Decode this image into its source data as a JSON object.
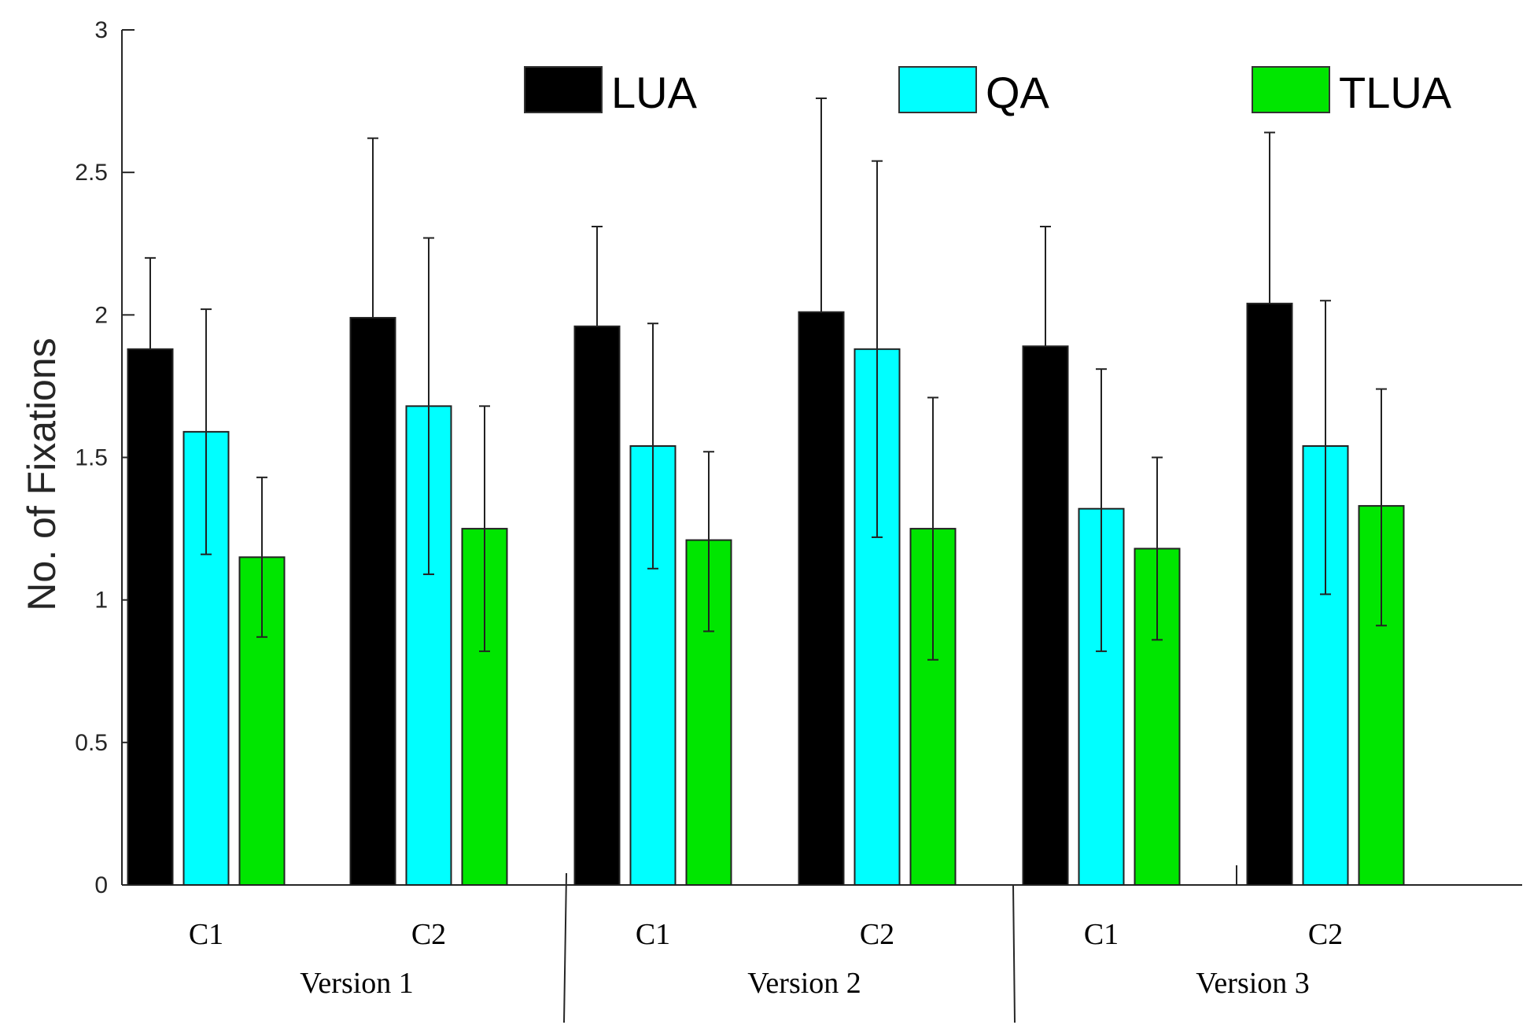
{
  "chart_data": {
    "type": "bar",
    "ylabel": "No. of Fixations",
    "xlabel": "",
    "ylim": [
      0,
      3
    ],
    "yticks": [
      "0",
      "0.5",
      "1",
      "1.5",
      "2",
      "2.5",
      "3"
    ],
    "legend_position": "top",
    "groups": [
      "Version 1",
      "Version 2",
      "Version 3"
    ],
    "categories": [
      "C1",
      "C2",
      "C1",
      "C2",
      "C1",
      "C2"
    ],
    "series": [
      {
        "name": "LUA",
        "color": "#000000",
        "values": [
          1.88,
          1.99,
          1.96,
          2.01,
          1.89,
          2.04
        ],
        "error_upper": [
          2.2,
          2.62,
          2.31,
          2.76,
          2.31,
          2.64
        ]
      },
      {
        "name": "QA",
        "color": "#00ffff",
        "values": [
          1.59,
          1.68,
          1.54,
          1.88,
          1.32,
          1.54
        ],
        "error_upper": [
          2.02,
          2.27,
          1.97,
          2.54,
          1.81,
          2.05
        ],
        "error_lower": [
          1.16,
          1.09,
          1.11,
          1.22,
          0.82,
          1.02
        ]
      },
      {
        "name": "TLUA",
        "color": "#00e600",
        "values": [
          1.15,
          1.25,
          1.21,
          1.25,
          1.18,
          1.33
        ],
        "error_upper": [
          1.43,
          1.68,
          1.52,
          1.71,
          1.5,
          1.74
        ],
        "error_lower": [
          0.87,
          0.82,
          0.89,
          0.79,
          0.86,
          0.91
        ]
      }
    ]
  }
}
